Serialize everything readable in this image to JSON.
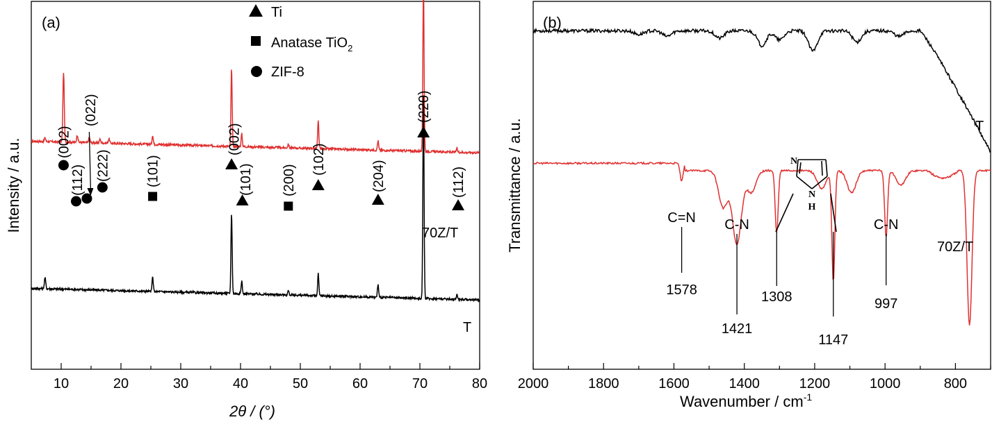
{
  "chart_data": [
    {
      "panel": "(a)",
      "type": "line",
      "xlabel": "2θ / (°)",
      "ylabel": "Intensity / a.u.",
      "xlim": [
        5,
        80
      ],
      "x_ticks": [
        10,
        20,
        30,
        40,
        50,
        60,
        70,
        80
      ],
      "y_ticks_shown": false,
      "grid": false,
      "legend_position": "top-center",
      "legend": [
        {
          "marker": "triangle",
          "label": "Ti"
        },
        {
          "marker": "square",
          "label_main": "Anatase TiO",
          "label_sub": "2"
        },
        {
          "marker": "circle",
          "label": "ZIF-8"
        }
      ],
      "series": [
        {
          "name": "70Z/T",
          "color": "#e03030",
          "baseline": 0.62,
          "peaks": [
            [
              7.3,
              0.01
            ],
            [
              10.4,
              0.19
            ],
            [
              12.7,
              0.02
            ],
            [
              14.7,
              0.015
            ],
            [
              16.5,
              0.01
            ],
            [
              18.0,
              0.012
            ],
            [
              25.3,
              0.025
            ],
            [
              38.5,
              0.21
            ],
            [
              40.2,
              0.035
            ],
            [
              48.0,
              0.01
            ],
            [
              53.0,
              0.075
            ],
            [
              63.0,
              0.025
            ],
            [
              70.6,
              0.47
            ],
            [
              76.2,
              0.01
            ]
          ]
        },
        {
          "name": "T",
          "color": "#000000",
          "baseline": 0.22,
          "peaks": [
            [
              7.3,
              0.03
            ],
            [
              25.3,
              0.04
            ],
            [
              38.5,
              0.22
            ],
            [
              40.2,
              0.035
            ],
            [
              48.0,
              0.012
            ],
            [
              53.0,
              0.06
            ],
            [
              63.0,
              0.035
            ],
            [
              70.6,
              0.56
            ],
            [
              76.2,
              0.015
            ]
          ]
        }
      ],
      "peak_annotations": [
        {
          "hkl": "(002)",
          "phase": "ZIF-8",
          "x": 10.4
        },
        {
          "hkl": "(112)",
          "phase": "ZIF-8",
          "x": 12.7
        },
        {
          "hkl": "(022)",
          "phase": "ZIF-8",
          "x": 14.5
        },
        {
          "hkl": "(222)",
          "phase": "ZIF-8",
          "x": 16.7
        },
        {
          "hkl": "(101)",
          "phase": "Anatase TiO2",
          "x": 25.3
        },
        {
          "hkl": "(002)",
          "phase": "Ti",
          "x": 38.4
        },
        {
          "hkl": "(101)",
          "phase": "Ti",
          "x": 40.2
        },
        {
          "hkl": "(200)",
          "phase": "Anatase TiO2",
          "x": 48.0
        },
        {
          "hkl": "(102)",
          "phase": "Ti",
          "x": 53.0
        },
        {
          "hkl": "(204)",
          "phase": "Ti",
          "x": 63.0
        },
        {
          "hkl": "(220)",
          "phase": "Ti",
          "x": 70.6
        },
        {
          "hkl": "(112)",
          "phase": "Ti",
          "x": 76.3
        }
      ]
    },
    {
      "panel": "(b)",
      "type": "line",
      "xlabel_main": "Wavenumber / cm",
      "xlabel_sup": "-1",
      "ylabel": "Transmittance / a.u.",
      "xlim": [
        2000,
        700
      ],
      "x_reversed": true,
      "x_ticks": [
        2000,
        1800,
        1600,
        1400,
        1200,
        1000,
        800
      ],
      "y_ticks_shown": false,
      "grid": false,
      "series": [
        {
          "name": "T",
          "color": "#000000",
          "baseline": 0.92,
          "dips": [
            [
              1700,
              0.01
            ],
            [
              1620,
              0.015
            ],
            [
              1470,
              0.02
            ],
            [
              1350,
              0.04
            ],
            [
              1300,
              0.025
            ],
            [
              1205,
              0.055
            ],
            [
              1080,
              0.03
            ],
            [
              960,
              0.015
            ]
          ],
          "decline_start": 900,
          "decline_end_value": 0.59
        },
        {
          "name": "70Z/T",
          "color": "#e03030",
          "baseline": 0.56,
          "dips": [
            [
              1578,
              0.05
            ],
            [
              1460,
              0.1
            ],
            [
              1421,
              0.2
            ],
            [
              1380,
              0.06
            ],
            [
              1308,
              0.17
            ],
            [
              1180,
              0.05
            ],
            [
              1147,
              0.3
            ],
            [
              1095,
              0.06
            ],
            [
              997,
              0.18
            ],
            [
              955,
              0.04
            ],
            [
              760,
              0.42
            ]
          ],
          "decline_start": 880
        }
      ],
      "annotations": [
        {
          "label": "C=N",
          "x": 1578,
          "label_position": "above"
        },
        {
          "label": "1578",
          "x": 1578,
          "label_position": "below"
        },
        {
          "label": "C-N",
          "x": 1421,
          "label_position": "above"
        },
        {
          "label": "1421",
          "x": 1421,
          "label_position": "below"
        },
        {
          "label": "1308",
          "x": 1308,
          "label_position": "below"
        },
        {
          "label": "1147",
          "x": 1147,
          "label_position": "below"
        },
        {
          "label": "C-N",
          "x": 997,
          "label_position": "above"
        },
        {
          "label": "997",
          "x": 997,
          "label_position": "below"
        }
      ],
      "inset_structure": {
        "name": "imidazole",
        "atom_N_top": "N",
        "atom_N_bottom": "N",
        "atom_H": "H"
      }
    }
  ]
}
